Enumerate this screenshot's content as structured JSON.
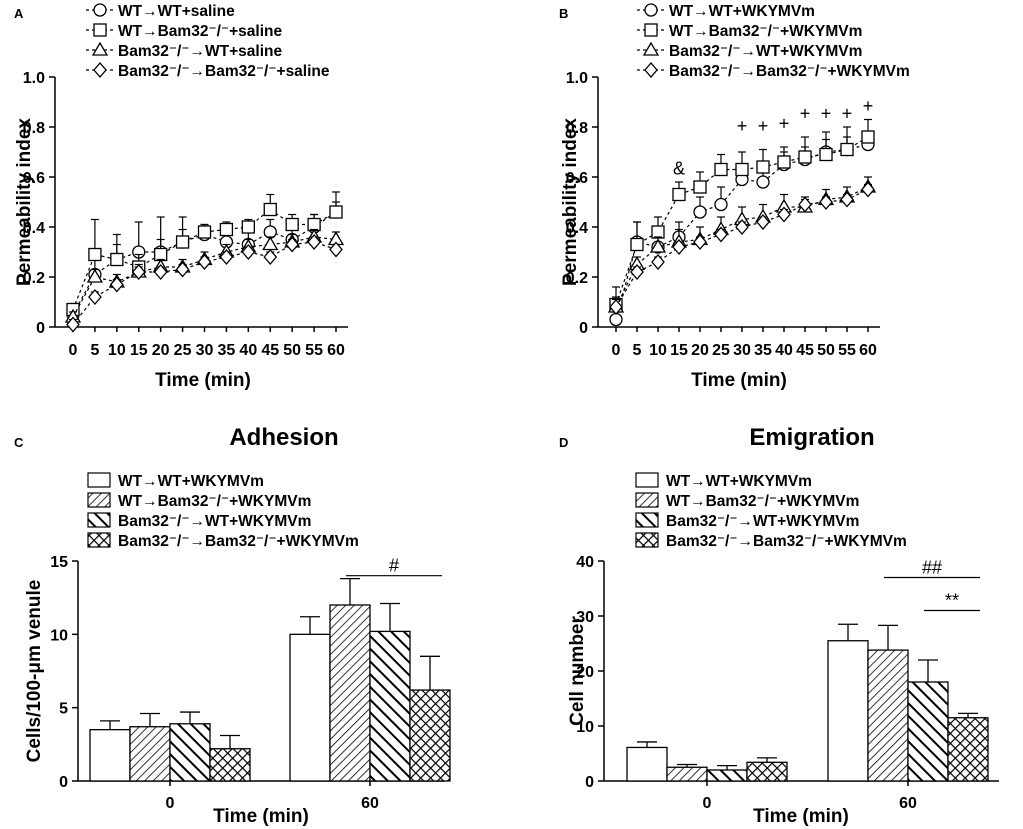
{
  "colors": {
    "ink": "#000000",
    "bg": "#ffffff"
  },
  "chart_data": [
    {
      "id": "A",
      "type": "line",
      "panel_label": "A",
      "title": "",
      "xlabel": "Time (min)",
      "ylabel": "Permeability index",
      "x": [
        0,
        5,
        10,
        15,
        20,
        25,
        30,
        35,
        40,
        45,
        50,
        55,
        60
      ],
      "xlim": [
        0,
        60
      ],
      "ylim": [
        0,
        1.0
      ],
      "yticks": [
        "0",
        "0.2",
        "0.4",
        "0.6",
        "0.8",
        "1.0"
      ],
      "yticks_values": [
        0,
        0.2,
        0.4,
        0.6,
        0.8,
        1.0
      ],
      "series": [
        {
          "name": "WT→WT+saline",
          "marker": "circle",
          "values": [
            0.05,
            0.21,
            0.27,
            0.3,
            0.3,
            0.34,
            0.37,
            0.34,
            0.33,
            0.38,
            0.35,
            0.4,
            0.46
          ],
          "errors": [
            0.03,
            0.06,
            0.1,
            0.12,
            0.14,
            0.1,
            0.04,
            0.05,
            0.05,
            0.05,
            0.04,
            0.05,
            0.08
          ]
        },
        {
          "name": "WT→Bam32⁻/⁻+saline",
          "marker": "square",
          "values": [
            0.07,
            0.29,
            0.27,
            0.24,
            0.29,
            0.34,
            0.38,
            0.39,
            0.4,
            0.47,
            0.41,
            0.41,
            0.46
          ],
          "errors": [
            0.02,
            0.14,
            0.06,
            0.05,
            0.06,
            0.05,
            0.03,
            0.03,
            0.03,
            0.06,
            0.04,
            0.04,
            0.04
          ]
        },
        {
          "name": "Bam32⁻/⁻→WT+saline",
          "marker": "triangle",
          "values": [
            0.04,
            0.2,
            0.18,
            0.22,
            0.24,
            0.24,
            0.27,
            0.3,
            0.32,
            0.33,
            0.34,
            0.36,
            0.35
          ],
          "errors": [
            0.02,
            0.03,
            0.03,
            0.03,
            0.03,
            0.03,
            0.03,
            0.03,
            0.03,
            0.03,
            0.03,
            0.03,
            0.03
          ]
        },
        {
          "name": "Bam32⁻/⁻→Bam32⁻/⁻+saline",
          "marker": "diamond",
          "values": [
            0.01,
            0.12,
            0.17,
            0.22,
            0.22,
            0.23,
            0.26,
            0.28,
            0.3,
            0.28,
            0.33,
            0.34,
            0.31
          ],
          "errors": [
            0.02,
            0.02,
            0.02,
            0.02,
            0.02,
            0.02,
            0.02,
            0.02,
            0.02,
            0.02,
            0.02,
            0.02,
            0.02
          ]
        }
      ],
      "annotations": []
    },
    {
      "id": "B",
      "type": "line",
      "panel_label": "B",
      "title": "",
      "xlabel": "Time (min)",
      "ylabel": "Permeability index",
      "x": [
        0,
        5,
        10,
        15,
        20,
        25,
        30,
        35,
        40,
        45,
        50,
        55,
        60
      ],
      "xlim": [
        0,
        60
      ],
      "ylim": [
        0,
        1.0
      ],
      "yticks": [
        "0",
        "0.2",
        "0.4",
        "0.6",
        "0.8",
        "1.0"
      ],
      "yticks_values": [
        0,
        0.2,
        0.4,
        0.6,
        0.8,
        1.0
      ],
      "series": [
        {
          "name": "WT→WT+WKYMVm",
          "marker": "circle",
          "values": [
            0.03,
            0.34,
            0.32,
            0.36,
            0.46,
            0.49,
            0.59,
            0.58,
            0.65,
            0.67,
            0.7,
            0.71,
            0.73
          ],
          "errors": [
            0.03,
            0.08,
            0.04,
            0.06,
            0.06,
            0.07,
            0.06,
            0.05,
            0.05,
            0.05,
            0.05,
            0.05,
            0.05
          ]
        },
        {
          "name": "WT→Bam32⁻/⁻+WKYMVm",
          "marker": "square",
          "values": [
            0.09,
            0.33,
            0.38,
            0.53,
            0.56,
            0.63,
            0.63,
            0.64,
            0.66,
            0.68,
            0.69,
            0.71,
            0.76
          ],
          "errors": [
            0.07,
            0.09,
            0.06,
            0.05,
            0.06,
            0.06,
            0.07,
            0.07,
            0.06,
            0.08,
            0.09,
            0.09,
            0.07
          ]
        },
        {
          "name": "Bam32⁻/⁻→WT+WKYMVm",
          "marker": "triangle",
          "values": [
            0.08,
            0.25,
            0.32,
            0.34,
            0.35,
            0.39,
            0.43,
            0.44,
            0.48,
            0.48,
            0.51,
            0.52,
            0.56
          ],
          "errors": [
            0.04,
            0.03,
            0.04,
            0.05,
            0.05,
            0.05,
            0.05,
            0.05,
            0.05,
            0.04,
            0.04,
            0.04,
            0.04
          ]
        },
        {
          "name": "Bam32⁻/⁻→Bam32⁻/⁻+WKYMVm",
          "marker": "diamond",
          "values": [
            0.08,
            0.22,
            0.26,
            0.32,
            0.34,
            0.37,
            0.4,
            0.42,
            0.45,
            0.49,
            0.5,
            0.51,
            0.55
          ],
          "errors": [
            0.03,
            0.02,
            0.02,
            0.02,
            0.02,
            0.02,
            0.02,
            0.02,
            0.02,
            0.02,
            0.02,
            0.02,
            0.02
          ]
        }
      ],
      "annotations": [
        {
          "symbol": "&",
          "x": 15,
          "y": 0.61
        },
        {
          "symbol": "+",
          "x": 30,
          "y": 0.78
        },
        {
          "symbol": "+",
          "x": 35,
          "y": 0.78
        },
        {
          "symbol": "+",
          "x": 40,
          "y": 0.79
        },
        {
          "symbol": "+",
          "x": 45,
          "y": 0.83
        },
        {
          "symbol": "+",
          "x": 50,
          "y": 0.83
        },
        {
          "symbol": "+",
          "x": 55,
          "y": 0.83
        },
        {
          "symbol": "+",
          "x": 60,
          "y": 0.86
        }
      ]
    },
    {
      "id": "C",
      "type": "bar",
      "panel_label": "C",
      "title": "Adhesion",
      "xlabel": "Time (min)",
      "ylabel": "Cells/100-μm venule",
      "categories": [
        "0",
        "60"
      ],
      "ylim": [
        0,
        15
      ],
      "yticks": [
        "0",
        "5",
        "10",
        "15"
      ],
      "yticks_values": [
        0,
        5,
        10,
        15
      ],
      "series": [
        {
          "name": "WT→WT+WKYMVm",
          "pattern": "plain",
          "values": [
            3.5,
            10.0
          ],
          "errors": [
            0.6,
            1.2
          ]
        },
        {
          "name": "WT→Bam32⁻/⁻+WKYMVm",
          "pattern": "diag-fine",
          "values": [
            3.7,
            12.0
          ],
          "errors": [
            0.9,
            1.8
          ]
        },
        {
          "name": "Bam32⁻/⁻→WT+WKYMVm",
          "pattern": "diag-bold",
          "values": [
            3.9,
            10.2
          ],
          "errors": [
            0.8,
            1.9
          ]
        },
        {
          "name": "Bam32⁻/⁻→Bam32⁻/⁻+WKYMVm",
          "pattern": "cross",
          "values": [
            2.2,
            6.2
          ],
          "errors": [
            0.9,
            2.3
          ]
        }
      ],
      "significance": [
        {
          "label": "#",
          "from_series": 1,
          "to_series": 3,
          "category": "60",
          "y": 14.0
        }
      ]
    },
    {
      "id": "D",
      "type": "bar",
      "panel_label": "D",
      "title": "Emigration",
      "xlabel": "Time (min)",
      "ylabel": "Cell number",
      "categories": [
        "0",
        "60"
      ],
      "ylim": [
        0,
        40
      ],
      "yticks": [
        "0",
        "10",
        "20",
        "30",
        "40"
      ],
      "yticks_values": [
        0,
        10,
        20,
        30,
        40
      ],
      "series": [
        {
          "name": "WT→WT+WKYMVm",
          "pattern": "plain",
          "values": [
            6.1,
            25.5
          ],
          "errors": [
            1.0,
            3.0
          ]
        },
        {
          "name": "WT→Bam32⁻/⁻+WKYMVm",
          "pattern": "diag-fine",
          "values": [
            2.5,
            23.8
          ],
          "errors": [
            0.5,
            4.5
          ]
        },
        {
          "name": "Bam32⁻/⁻→WT+WKYMVm",
          "pattern": "diag-bold",
          "values": [
            2.0,
            18.0
          ],
          "errors": [
            0.8,
            4.0
          ]
        },
        {
          "name": "Bam32⁻/⁻→Bam32⁻/⁻+WKYMVm",
          "pattern": "cross",
          "values": [
            3.4,
            11.5
          ],
          "errors": [
            0.8,
            0.8
          ]
        }
      ],
      "significance": [
        {
          "label": "##",
          "from_series": 1,
          "to_series": 3,
          "category": "60",
          "y": 37.0
        },
        {
          "label": "**",
          "from_series": 2,
          "to_series": 3,
          "category": "60",
          "y": 31.0
        }
      ]
    }
  ]
}
